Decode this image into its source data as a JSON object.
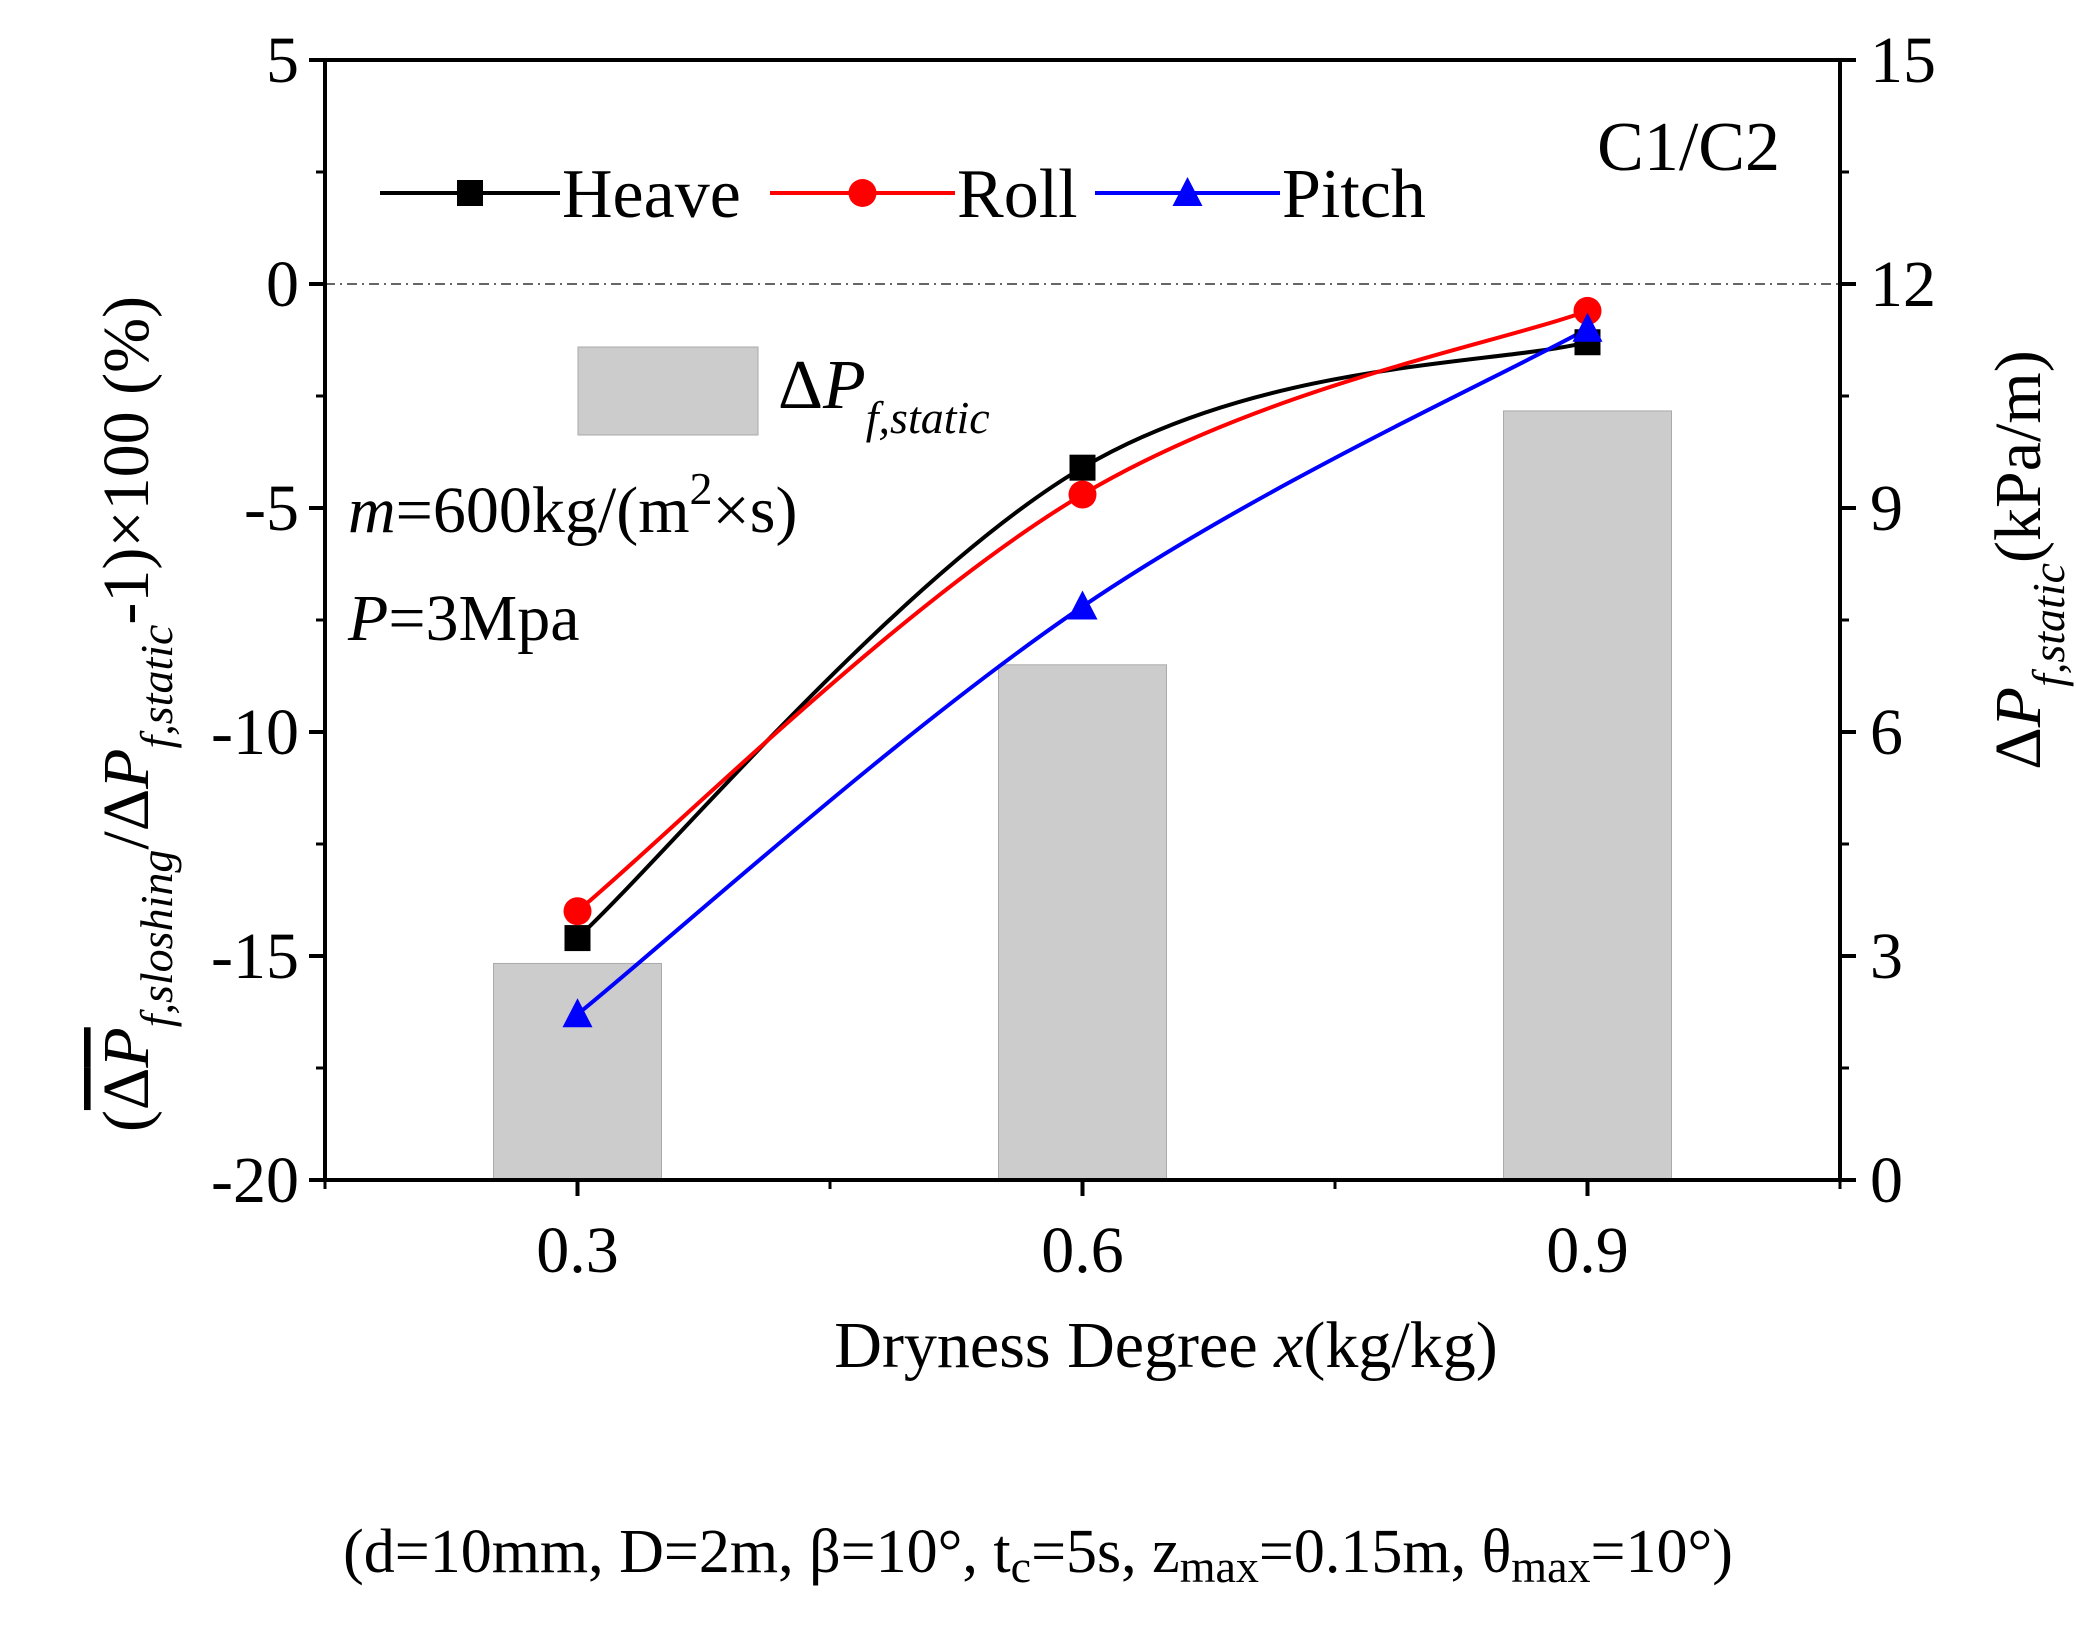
{
  "chart_data": {
    "type": "line+bar",
    "panel_label": "C1/C2",
    "x": [
      0.3,
      0.6,
      0.9
    ],
    "x_tick_labels": [
      "0.3",
      "0.6",
      "0.9"
    ],
    "xlim": [
      0.15,
      1.05
    ],
    "xlabel": {
      "pre": "Dryness Degree ",
      "italic": "x",
      "post": "(kg/kg)"
    },
    "y_left": {
      "lim": [
        -20,
        5
      ],
      "ticks": [
        5,
        0,
        -5,
        -10,
        -15,
        -20
      ],
      "tick_labels": [
        "5",
        "0",
        "-5",
        "-10",
        "-15",
        "-20"
      ],
      "label": {
        "open": "(",
        "delta": "Δ",
        "P": "P",
        "sub1": "f,sloshing",
        "slash": "/Δ",
        "P2": "P",
        "sub2": "f,static",
        "tail": "-1)×100 (%)"
      }
    },
    "y_right": {
      "lim": [
        0,
        15
      ],
      "ticks": [
        15,
        12,
        9,
        6,
        3,
        0
      ],
      "tick_labels": [
        "15",
        "12",
        "9",
        "6",
        "3",
        "0"
      ],
      "label": {
        "delta": "Δ",
        "P": "P",
        "sub": "f,static",
        "unit": "(kPa/m)"
      }
    },
    "series": [
      {
        "name": "Heave",
        "color": "#000000",
        "marker": "square",
        "values": [
          -14.6,
          -4.1,
          -1.3
        ]
      },
      {
        "name": "Roll",
        "color": "#ff0000",
        "marker": "circle",
        "values": [
          -14.0,
          -4.7,
          -0.6
        ]
      },
      {
        "name": "Pitch",
        "color": "#0000ff",
        "marker": "triangle",
        "values": [
          -16.3,
          -7.2,
          -1.0
        ]
      }
    ],
    "bars": {
      "name_delta": "Δ",
      "name_P": "P",
      "name_sub": "f,static",
      "axis": "right",
      "color": "#cccccc",
      "values": [
        2.9,
        6.9,
        10.3
      ]
    },
    "reference_line": {
      "y": 0,
      "style": "dash-dot",
      "color": "#666666"
    },
    "annotations": {
      "m_label": "m",
      "m_value": "=600kg/(m",
      "m_sup": "2",
      "m_tail": "×s)",
      "p_label": "P",
      "p_value": "=3Mpa"
    }
  },
  "footer": "(d=10mm, D=2m, β=10°, t",
  "footer_parts": {
    "a": "(d=10mm, D=2m, β=10°, t",
    "a_sub": "c",
    "b": "=5s, z",
    "b_sub": "max",
    "c": "=0.15m, θ",
    "c_sub": "max",
    "d": "=10°)"
  }
}
